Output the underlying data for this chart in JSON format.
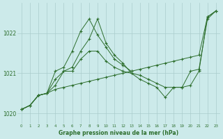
{
  "title": "Graphe pression niveau de la mer (hPa)",
  "bg_color": "#cceaea",
  "grid_color": "#aacccc",
  "line_color": "#2d6e2d",
  "x_ticks": [
    0,
    1,
    2,
    3,
    4,
    5,
    6,
    7,
    8,
    9,
    10,
    11,
    12,
    13,
    14,
    15,
    16,
    17,
    18,
    19,
    20,
    21,
    22,
    23
  ],
  "ylim": [
    1019.75,
    1022.75
  ],
  "yticks": [
    1020,
    1021,
    1022
  ],
  "series": [
    [
      1020.1,
      1020.2,
      1020.45,
      1020.5,
      1020.6,
      1020.65,
      1020.7,
      1020.75,
      1020.8,
      1020.85,
      1020.9,
      1020.95,
      1021.0,
      1021.05,
      1021.1,
      1021.15,
      1021.2,
      1021.25,
      1021.3,
      1021.35,
      1021.4,
      1021.45,
      1022.4,
      1022.55
    ],
    [
      1020.1,
      1020.2,
      1020.45,
      1020.5,
      1020.85,
      1021.05,
      1021.15,
      1021.55,
      1021.85,
      1022.35,
      1021.75,
      1021.45,
      1021.25,
      1021.0,
      1020.85,
      1020.75,
      1020.65,
      1020.4,
      1020.65,
      1020.65,
      1021.05,
      1021.1,
      1022.35,
      1022.55
    ],
    [
      1020.1,
      1020.2,
      1020.45,
      1020.5,
      1021.05,
      1021.15,
      1021.55,
      1022.05,
      1022.35,
      1021.95,
      1021.65,
      1021.35,
      1021.2,
      1021.05,
      null,
      null,
      null,
      null,
      null,
      null,
      null,
      null,
      null,
      null
    ],
    [
      1020.1,
      1020.2,
      1020.45,
      1020.5,
      1020.7,
      1021.05,
      1021.05,
      1021.35,
      1021.55,
      1021.55,
      1021.3,
      1021.15,
      1021.05,
      1021.0,
      1020.95,
      1020.85,
      1020.75,
      1020.65,
      1020.65,
      1020.65,
      1020.7,
      1021.05,
      1022.4,
      1022.55
    ]
  ]
}
